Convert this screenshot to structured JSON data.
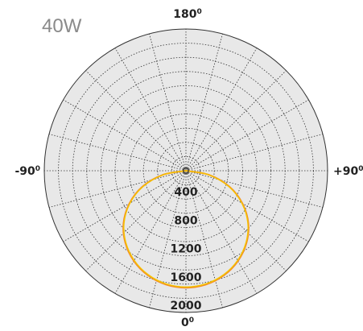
{
  "chart_data": {
    "type": "polar",
    "title": "40W",
    "angle_labels": {
      "top": "180",
      "bottom": "0",
      "left": "-90",
      "right": "+90",
      "degree_mark": "0"
    },
    "radial_ticks": [
      400,
      800,
      1200,
      1600,
      2000
    ],
    "radial_tick_labels": [
      "400",
      "800",
      "1200",
      "1600",
      "2000"
    ],
    "rmax": 2000,
    "grid": true,
    "angular_grid_step_deg": 15,
    "series": [
      {
        "color": "#f28c28",
        "angles_deg": [
          0,
          10,
          20,
          30,
          40,
          50,
          60,
          70,
          80,
          90
        ],
        "values": [
          1650,
          1630,
          1570,
          1470,
          1330,
          1150,
          920,
          650,
          330,
          0
        ]
      },
      {
        "color": "#f5c400",
        "angles_deg": [
          0,
          10,
          20,
          30,
          40,
          50,
          60,
          70,
          80,
          90
        ],
        "values": [
          1640,
          1620,
          1560,
          1460,
          1320,
          1140,
          910,
          640,
          320,
          0
        ]
      }
    ],
    "colors": {
      "background": "#e8e8e8",
      "grid": "#333333",
      "outer_ring": "#333333"
    }
  }
}
